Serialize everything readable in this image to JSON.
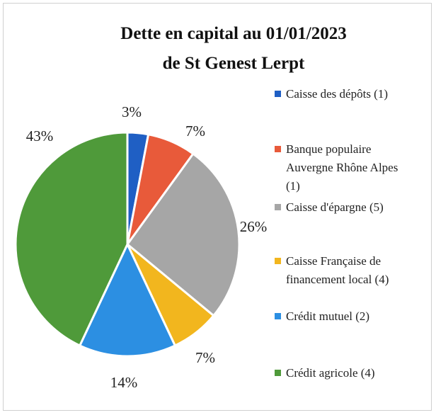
{
  "chart_data": {
    "type": "pie",
    "title": [
      "Dette en capital au 01/01/2023",
      "de St Genest Lerpt"
    ],
    "categories": [
      "Caisse des dépôts (1)",
      "Banque populaire Auvergne Rhône Alpes (1)",
      "Caisse d'épargne (5)",
      "Caisse Française de financement local (4)",
      "Crédit mutuel (2)",
      "Crédit agricole (4)"
    ],
    "values": [
      3,
      7,
      26,
      7,
      14,
      43
    ],
    "value_labels": [
      "3%",
      "7%",
      "26%",
      "7%",
      "14%",
      "43%"
    ],
    "colors": [
      "#1f5fc4",
      "#e85a3a",
      "#a6a6a6",
      "#f2b61e",
      "#2c8fe2",
      "#4f9a3a"
    ],
    "legend": "right"
  }
}
